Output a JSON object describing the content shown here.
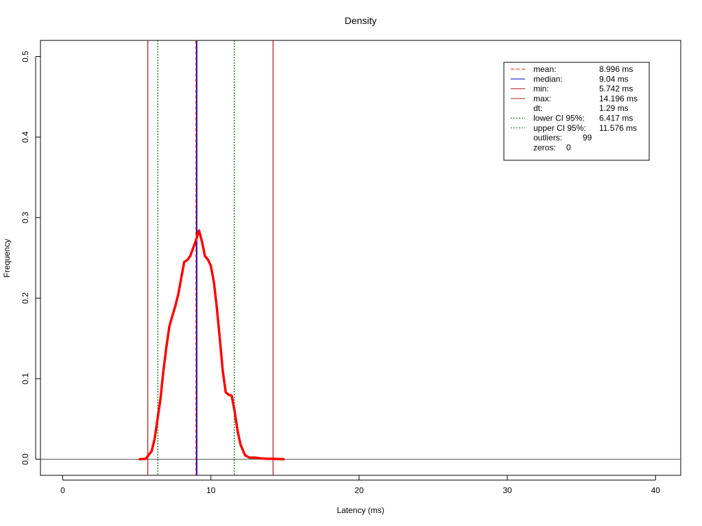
{
  "chart_data": {
    "type": "line",
    "title": "Density",
    "xlabel": "Latency (ms)",
    "ylabel": "Frequency",
    "xlim": [
      -1.5,
      41.7
    ],
    "ylim": [
      -0.02,
      0.52
    ],
    "x_ticks": [
      0,
      10,
      20,
      30,
      40
    ],
    "y_ticks": [
      0.0,
      0.1,
      0.2,
      0.3,
      0.4,
      0.5
    ],
    "grid": false,
    "legend_position": "top-right",
    "series": [
      {
        "color": "#ff0000",
        "points": [
          [
            5.2,
            0.0
          ],
          [
            5.6,
            0.0005
          ],
          [
            6.0,
            0.01
          ],
          [
            6.2,
            0.025
          ],
          [
            6.4,
            0.05
          ],
          [
            6.6,
            0.075
          ],
          [
            6.8,
            0.11
          ],
          [
            7.0,
            0.14
          ],
          [
            7.2,
            0.165
          ],
          [
            7.4,
            0.178
          ],
          [
            7.6,
            0.19
          ],
          [
            7.8,
            0.205
          ],
          [
            8.0,
            0.225
          ],
          [
            8.2,
            0.245
          ],
          [
            8.4,
            0.247
          ],
          [
            8.6,
            0.252
          ],
          [
            8.8,
            0.262
          ],
          [
            9.0,
            0.272
          ],
          [
            9.2,
            0.284
          ],
          [
            9.4,
            0.27
          ],
          [
            9.6,
            0.252
          ],
          [
            9.8,
            0.248
          ],
          [
            10.0,
            0.24
          ],
          [
            10.2,
            0.22
          ],
          [
            10.4,
            0.188
          ],
          [
            10.6,
            0.15
          ],
          [
            10.8,
            0.11
          ],
          [
            11.0,
            0.083
          ],
          [
            11.2,
            0.08
          ],
          [
            11.4,
            0.079
          ],
          [
            11.6,
            0.06
          ],
          [
            11.8,
            0.035
          ],
          [
            12.0,
            0.018
          ],
          [
            12.3,
            0.005
          ],
          [
            12.6,
            0.002
          ],
          [
            13.0,
            0.002
          ],
          [
            13.4,
            0.001
          ],
          [
            13.8,
            0.0005
          ],
          [
            14.2,
            0.0005
          ],
          [
            14.9,
            0.0
          ]
        ]
      }
    ],
    "reference_lines": [
      {
        "name": "mean",
        "x": 8.996,
        "color": "#ff0000",
        "style": "dashed"
      },
      {
        "name": "median",
        "x": 9.04,
        "color": "#0000cc",
        "style": "solid"
      },
      {
        "name": "min",
        "x": 5.742,
        "color": "#b22222",
        "style": "solid"
      },
      {
        "name": "max",
        "x": 14.196,
        "color": "#b22222",
        "style": "solid"
      },
      {
        "name": "lower-ci",
        "x": 6.417,
        "color": "#006400",
        "style": "dotted"
      },
      {
        "name": "upper-ci",
        "x": 11.576,
        "color": "#006400",
        "style": "dotted"
      }
    ],
    "baseline": 0,
    "legend": [
      {
        "label": "mean:",
        "value": "8.996 ms",
        "line": "dashed",
        "color": "#ff0000"
      },
      {
        "label": "median:",
        "value": "9.04 ms",
        "line": "solid",
        "color": "#0000cc"
      },
      {
        "label": "min:",
        "value": "5.742 ms",
        "line": "solid",
        "color": "#b22222"
      },
      {
        "label": "max:",
        "value": "14.196 ms",
        "line": "solid",
        "color": "#b22222"
      },
      {
        "label": "dt:",
        "value": "1.29 ms",
        "line": "none",
        "color": ""
      },
      {
        "label": "lower CI 95%:",
        "value": "6.417 ms",
        "line": "dotted",
        "color": "#006400"
      },
      {
        "label": "upper CI 95%:",
        "value": "11.576 ms",
        "line": "dotted",
        "color": "#006400"
      },
      {
        "label": "outliers:",
        "value": "99",
        "line": "none",
        "color": ""
      },
      {
        "label": "zeros:",
        "value": "0",
        "line": "none",
        "color": ""
      }
    ]
  }
}
